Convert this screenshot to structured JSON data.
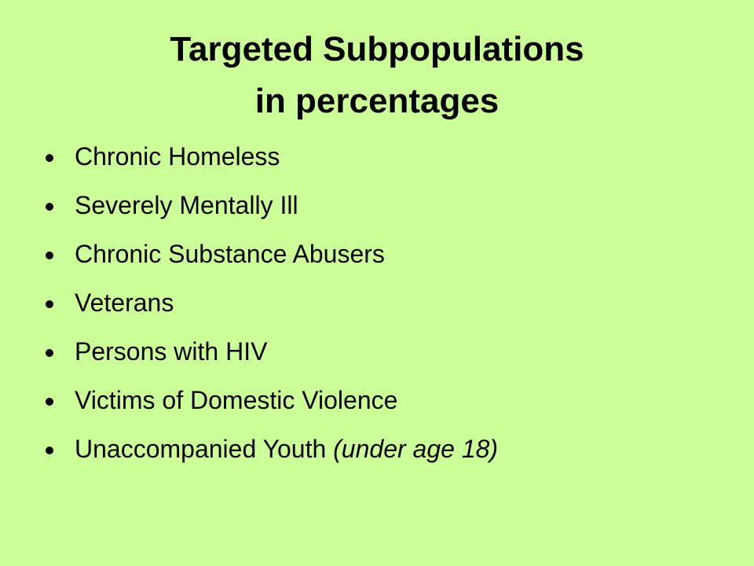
{
  "title": {
    "line1": "Targeted Subpopulations",
    "line2": "in percentages"
  },
  "bullets": [
    {
      "text": "Chronic Homeless"
    },
    {
      "text": "Severely Mentally Ill"
    },
    {
      "text": "Chronic Substance Abusers"
    },
    {
      "text": "Veterans"
    },
    {
      "text": "Persons with HIV"
    },
    {
      "text": "Victims of Domestic Violence"
    },
    {
      "text": "Unaccompanied Youth",
      "note": "(under age 18)"
    }
  ]
}
